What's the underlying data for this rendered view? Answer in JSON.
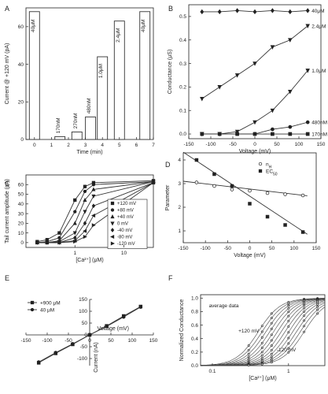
{
  "chart_data": [
    {
      "panel": "A",
      "type": "bar",
      "xlabel": "Time (min)",
      "ylabel": "Current @ +120 mV (pA)",
      "xlim": [
        -0.5,
        7
      ],
      "ylim": [
        0,
        70
      ],
      "xticks": [
        0,
        1,
        2,
        3,
        4,
        5,
        6,
        7
      ],
      "yticks": [
        0,
        20,
        40,
        60
      ],
      "bars": [
        {
          "x": 0,
          "value": 68,
          "label": "40μM"
        },
        {
          "x": 1.5,
          "value": 1.5,
          "label": "170nM"
        },
        {
          "x": 2.5,
          "value": 4,
          "label": "270nM"
        },
        {
          "x": 3.3,
          "value": 12,
          "label": "480nM"
        },
        {
          "x": 4,
          "value": 44,
          "label": "1.0μM"
        },
        {
          "x": 5,
          "value": 63,
          "label": "2.4μM"
        },
        {
          "x": 6.5,
          "value": 68,
          "label": "40μM"
        }
      ]
    },
    {
      "panel": "B",
      "type": "line",
      "xlabel": "Voltage (mV)",
      "ylabel": "Conductance (μS)",
      "xlim": [
        -150,
        150
      ],
      "ylim": [
        -0.02,
        0.55
      ],
      "xticks": [
        -150,
        -100,
        -50,
        0,
        50,
        100,
        150
      ],
      "yticks": [
        0.0,
        0.1,
        0.2,
        0.3,
        0.4,
        0.5
      ],
      "x": [
        -120,
        -80,
        -40,
        0,
        40,
        80,
        120
      ],
      "series": [
        {
          "name": "40μM",
          "marker": "diamond",
          "values": [
            0.52,
            0.52,
            0.525,
            0.52,
            0.525,
            0.52,
            0.525
          ]
        },
        {
          "name": "2.4μM",
          "marker": "triangle-down",
          "values": [
            0.15,
            0.2,
            0.25,
            0.3,
            0.37,
            0.4,
            0.46
          ]
        },
        {
          "name": "1.0μM",
          "marker": "triangle-down",
          "values": [
            0.0,
            0.0,
            0.01,
            0.05,
            0.1,
            0.18,
            0.27
          ]
        },
        {
          "name": "480nM",
          "marker": "circle",
          "values": [
            0.0,
            0.0,
            0.0,
            0.0,
            0.02,
            0.03,
            0.05
          ]
        },
        {
          "name": "170nM",
          "marker": "square",
          "values": [
            0.0,
            0.0,
            0.0,
            0.0,
            0.0,
            0.0,
            0.0
          ]
        }
      ]
    },
    {
      "panel": "C",
      "type": "line",
      "xlabel": "[Ca²⁺] (μM)",
      "ylabel": "Tail current amplitude (pA)",
      "xscale": "log",
      "xlim": [
        0.1,
        40
      ],
      "ylim": [
        -5,
        70
      ],
      "xticks": [
        1,
        10
      ],
      "yticks": [
        0,
        10,
        20,
        30,
        40,
        50,
        60
      ],
      "x": [
        0.17,
        0.27,
        0.48,
        1.0,
        1.6,
        2.4,
        40
      ],
      "legend": "inside-right",
      "series": [
        {
          "name": "+120 mV",
          "marker": "square",
          "values": [
            1,
            3,
            10,
            44,
            58,
            62,
            64
          ]
        },
        {
          "name": "+80 mV",
          "marker": "circle",
          "values": [
            0,
            1,
            5,
            32,
            53,
            60,
            63
          ]
        },
        {
          "name": "+40 mV",
          "marker": "triangle-up",
          "values": [
            0,
            0,
            2,
            20,
            44,
            55,
            63
          ]
        },
        {
          "name": "0 mV",
          "marker": "triangle-down",
          "values": [
            0,
            0,
            1,
            10,
            32,
            48,
            63
          ]
        },
        {
          "name": "-40 mV",
          "marker": "diamond",
          "values": [
            0,
            0,
            0,
            5,
            20,
            38,
            62
          ]
        },
        {
          "name": "-80 mV",
          "marker": "triangle-left",
          "values": [
            0,
            0,
            0,
            2,
            12,
            28,
            62
          ]
        },
        {
          "name": "-120 mV",
          "marker": "triangle-right",
          "values": [
            0,
            0,
            0,
            1,
            6,
            18,
            62
          ]
        }
      ]
    },
    {
      "panel": "D",
      "type": "scatter",
      "xlabel": "Voltage (mV)",
      "ylabel": "Parameter",
      "xlim": [
        -150,
        150
      ],
      "ylim": [
        0.5,
        4.3
      ],
      "xticks": [
        -150,
        -100,
        -50,
        0,
        50,
        100,
        150
      ],
      "yticks": [
        1,
        2,
        3,
        4
      ],
      "x": [
        -120,
        -80,
        -40,
        0,
        40,
        80,
        120
      ],
      "legend": "top-right",
      "series": [
        {
          "name": "n",
          "subscript": "H",
          "marker": "circle-open",
          "values": [
            3.05,
            2.9,
            2.75,
            2.7,
            2.6,
            2.55,
            2.5
          ]
        },
        {
          "name": "EC",
          "subscript": "50",
          "marker": "square-filled",
          "values": [
            4.0,
            3.4,
            2.9,
            2.15,
            1.6,
            1.25,
            0.95
          ]
        }
      ],
      "fits": [
        {
          "slope": -0.0022,
          "intercept": 2.77
        },
        {
          "slope": -0.0124,
          "intercept": 2.47
        }
      ]
    },
    {
      "panel": "E",
      "type": "line",
      "xlabel": "Voltage (mV)",
      "ylabel": "Current (nA)",
      "xlim": [
        -150,
        150
      ],
      "ylim": [
        -130,
        150
      ],
      "xticks": [
        -150,
        -100,
        -50,
        0,
        50,
        100,
        150
      ],
      "yticks": [
        -100,
        -50,
        0,
        50,
        100,
        150
      ],
      "x": [
        -120,
        -80,
        -40,
        0,
        40,
        80,
        120
      ],
      "legend": "top-left",
      "series": [
        {
          "name": "+900 μM",
          "marker": "square",
          "values": [
            -118,
            -78,
            -40,
            0,
            38,
            80,
            120
          ]
        },
        {
          "name": "40 μM",
          "marker": "circle",
          "values": [
            -115,
            -75,
            -38,
            0,
            36,
            76,
            118
          ]
        }
      ]
    },
    {
      "panel": "F",
      "type": "line",
      "xlabel": "[Ca²⁺] (μM)",
      "ylabel": "Normalized Conductance",
      "xscale": "log",
      "xlim": [
        0.07,
        3
      ],
      "ylim": [
        0,
        1.05
      ],
      "xticks": [
        0.1,
        1
      ],
      "yticks": [
        0.0,
        0.2,
        0.4,
        0.6,
        0.8,
        1.0
      ],
      "texts": [
        "average data",
        "+120 mV",
        "-120 mV"
      ],
      "ec50_start": 0.4,
      "ec50_end": 1.6,
      "hill": 3,
      "curve_count": 13
    }
  ],
  "panel_letters": [
    "A",
    "B",
    "C",
    "D",
    "E",
    "F"
  ]
}
